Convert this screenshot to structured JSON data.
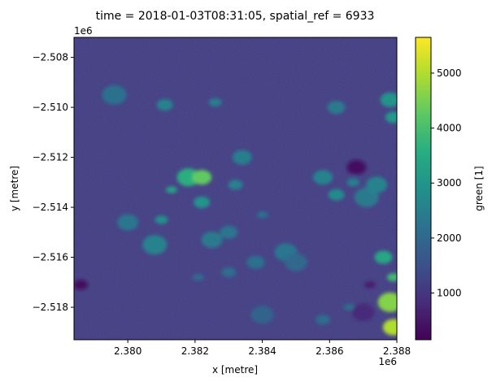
{
  "chart_data": {
    "type": "heatmap",
    "title": "time = 2018-01-03T08:31:05, spatial_ref = 6933",
    "xlabel": "x [metre]",
    "ylabel": "y [metre]",
    "x_offset_label": "1e6",
    "y_offset_label": "1e6",
    "xlim": [
      2.3784,
      2.388
    ],
    "ylim": [
      -2.5193,
      -2.5072
    ],
    "x_ticks": [
      {
        "value": 2.38,
        "label": "2.380"
      },
      {
        "value": 2.382,
        "label": "2.382"
      },
      {
        "value": 2.384,
        "label": "2.384"
      },
      {
        "value": 2.386,
        "label": "2.386"
      },
      {
        "value": 2.388,
        "label": "2.388"
      }
    ],
    "y_ticks": [
      {
        "value": -2.508,
        "label": "−2.508"
      },
      {
        "value": -2.51,
        "label": "−2.510"
      },
      {
        "value": -2.512,
        "label": "−2.512"
      },
      {
        "value": -2.514,
        "label": "−2.514"
      },
      {
        "value": -2.516,
        "label": "−2.516"
      },
      {
        "value": -2.518,
        "label": "−2.518"
      }
    ],
    "colorbar": {
      "label": "green [1]",
      "colormap": "viridis",
      "vmin": 150,
      "vmax": 5650,
      "ticks": [
        {
          "value": 1000,
          "label": "1000"
        },
        {
          "value": 2000,
          "label": "2000"
        },
        {
          "value": 3000,
          "label": "3000"
        },
        {
          "value": 4000,
          "label": "4000"
        },
        {
          "value": 5000,
          "label": "5000"
        }
      ]
    },
    "background_value": 1100,
    "bright_patches": [
      {
        "x": 2.3813,
        "y": -2.5133,
        "value": 3300
      },
      {
        "x": 2.3818,
        "y": -2.5128,
        "value": 3600
      },
      {
        "x": 2.3822,
        "y": -2.5128,
        "value": 4300
      },
      {
        "x": 2.3822,
        "y": -2.5138,
        "value": 3000
      },
      {
        "x": 2.381,
        "y": -2.5145,
        "value": 2900
      },
      {
        "x": 2.3808,
        "y": -2.5155,
        "value": 2600
      },
      {
        "x": 2.3825,
        "y": -2.5153,
        "value": 2400
      },
      {
        "x": 2.383,
        "y": -2.515,
        "value": 2300
      },
      {
        "x": 2.3832,
        "y": -2.5131,
        "value": 2600
      },
      {
        "x": 2.384,
        "y": -2.5143,
        "value": 2200
      },
      {
        "x": 2.3847,
        "y": -2.5158,
        "value": 2300
      },
      {
        "x": 2.3834,
        "y": -2.512,
        "value": 2500
      },
      {
        "x": 2.3811,
        "y": -2.5099,
        "value": 2600
      },
      {
        "x": 2.3826,
        "y": -2.5098,
        "value": 2500
      },
      {
        "x": 2.3796,
        "y": -2.5095,
        "value": 2200
      },
      {
        "x": 2.38,
        "y": -2.5146,
        "value": 2300
      },
      {
        "x": 2.3838,
        "y": -2.5162,
        "value": 2200
      },
      {
        "x": 2.383,
        "y": -2.5166,
        "value": 2100
      },
      {
        "x": 2.3821,
        "y": -2.5168,
        "value": 2100
      },
      {
        "x": 2.385,
        "y": -2.5162,
        "value": 2000
      },
      {
        "x": 2.3858,
        "y": -2.5128,
        "value": 2600
      },
      {
        "x": 2.3862,
        "y": -2.5135,
        "value": 2800
      },
      {
        "x": 2.3867,
        "y": -2.513,
        "value": 2500
      },
      {
        "x": 2.3871,
        "y": -2.5136,
        "value": 2400
      },
      {
        "x": 2.3874,
        "y": -2.5131,
        "value": 2600
      },
      {
        "x": 2.3862,
        "y": -2.51,
        "value": 2400
      },
      {
        "x": 2.3858,
        "y": -2.5185,
        "value": 2100
      },
      {
        "x": 2.3866,
        "y": -2.518,
        "value": 2200
      },
      {
        "x": 2.384,
        "y": -2.5183,
        "value": 1900
      },
      {
        "x": 2.3878,
        "y": -2.5097,
        "value": 3000
      },
      {
        "x": 2.3879,
        "y": -2.5104,
        "value": 3100
      },
      {
        "x": 2.3879,
        "y": -2.5168,
        "value": 3900
      },
      {
        "x": 2.3878,
        "y": -2.5178,
        "value": 4600
      },
      {
        "x": 2.3879,
        "y": -2.5188,
        "value": 5000
      },
      {
        "x": 2.3876,
        "y": -2.516,
        "value": 3400
      }
    ],
    "dark_patches": [
      {
        "x": 2.3786,
        "y": -2.5171,
        "value": 300
      },
      {
        "x": 2.3872,
        "y": -2.5171,
        "value": 600
      },
      {
        "x": 2.387,
        "y": -2.5182,
        "value": 800
      },
      {
        "x": 2.3868,
        "y": -2.5124,
        "value": 400
      }
    ]
  }
}
